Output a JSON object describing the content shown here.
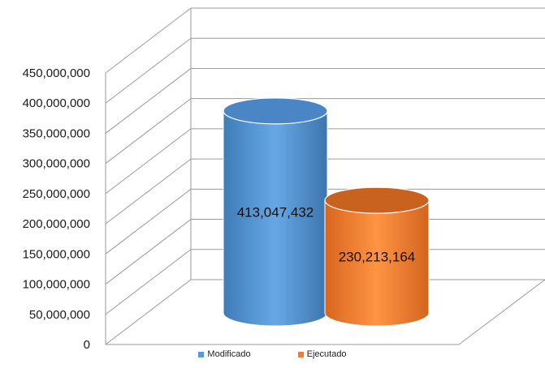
{
  "chart_data": {
    "type": "bar",
    "style": "3d-cylinder",
    "categories": [
      "Modificado",
      "Ejecutado"
    ],
    "values": [
      413047432,
      230213164
    ],
    "data_labels": [
      "413,047,432",
      "230,213,164"
    ],
    "ylim": [
      0,
      450000000
    ],
    "ytick_labels": [
      "0",
      "50,000,000",
      "100,000,000",
      "150,000,000",
      "200,000,000",
      "250,000,000",
      "300,000,000",
      "350,000,000",
      "400,000,000",
      "450,000,000"
    ],
    "grid": true,
    "legend_position": "bottom",
    "legend": [
      {
        "label": "Modificado",
        "color": "#5b9bd5"
      },
      {
        "label": "Ejecutado",
        "color": "#ed7d31"
      }
    ],
    "colors": {
      "Modificado": "#5b9bd5",
      "Ejecutado": "#ed7d31",
      "grid": "#9a9a9a"
    }
  }
}
